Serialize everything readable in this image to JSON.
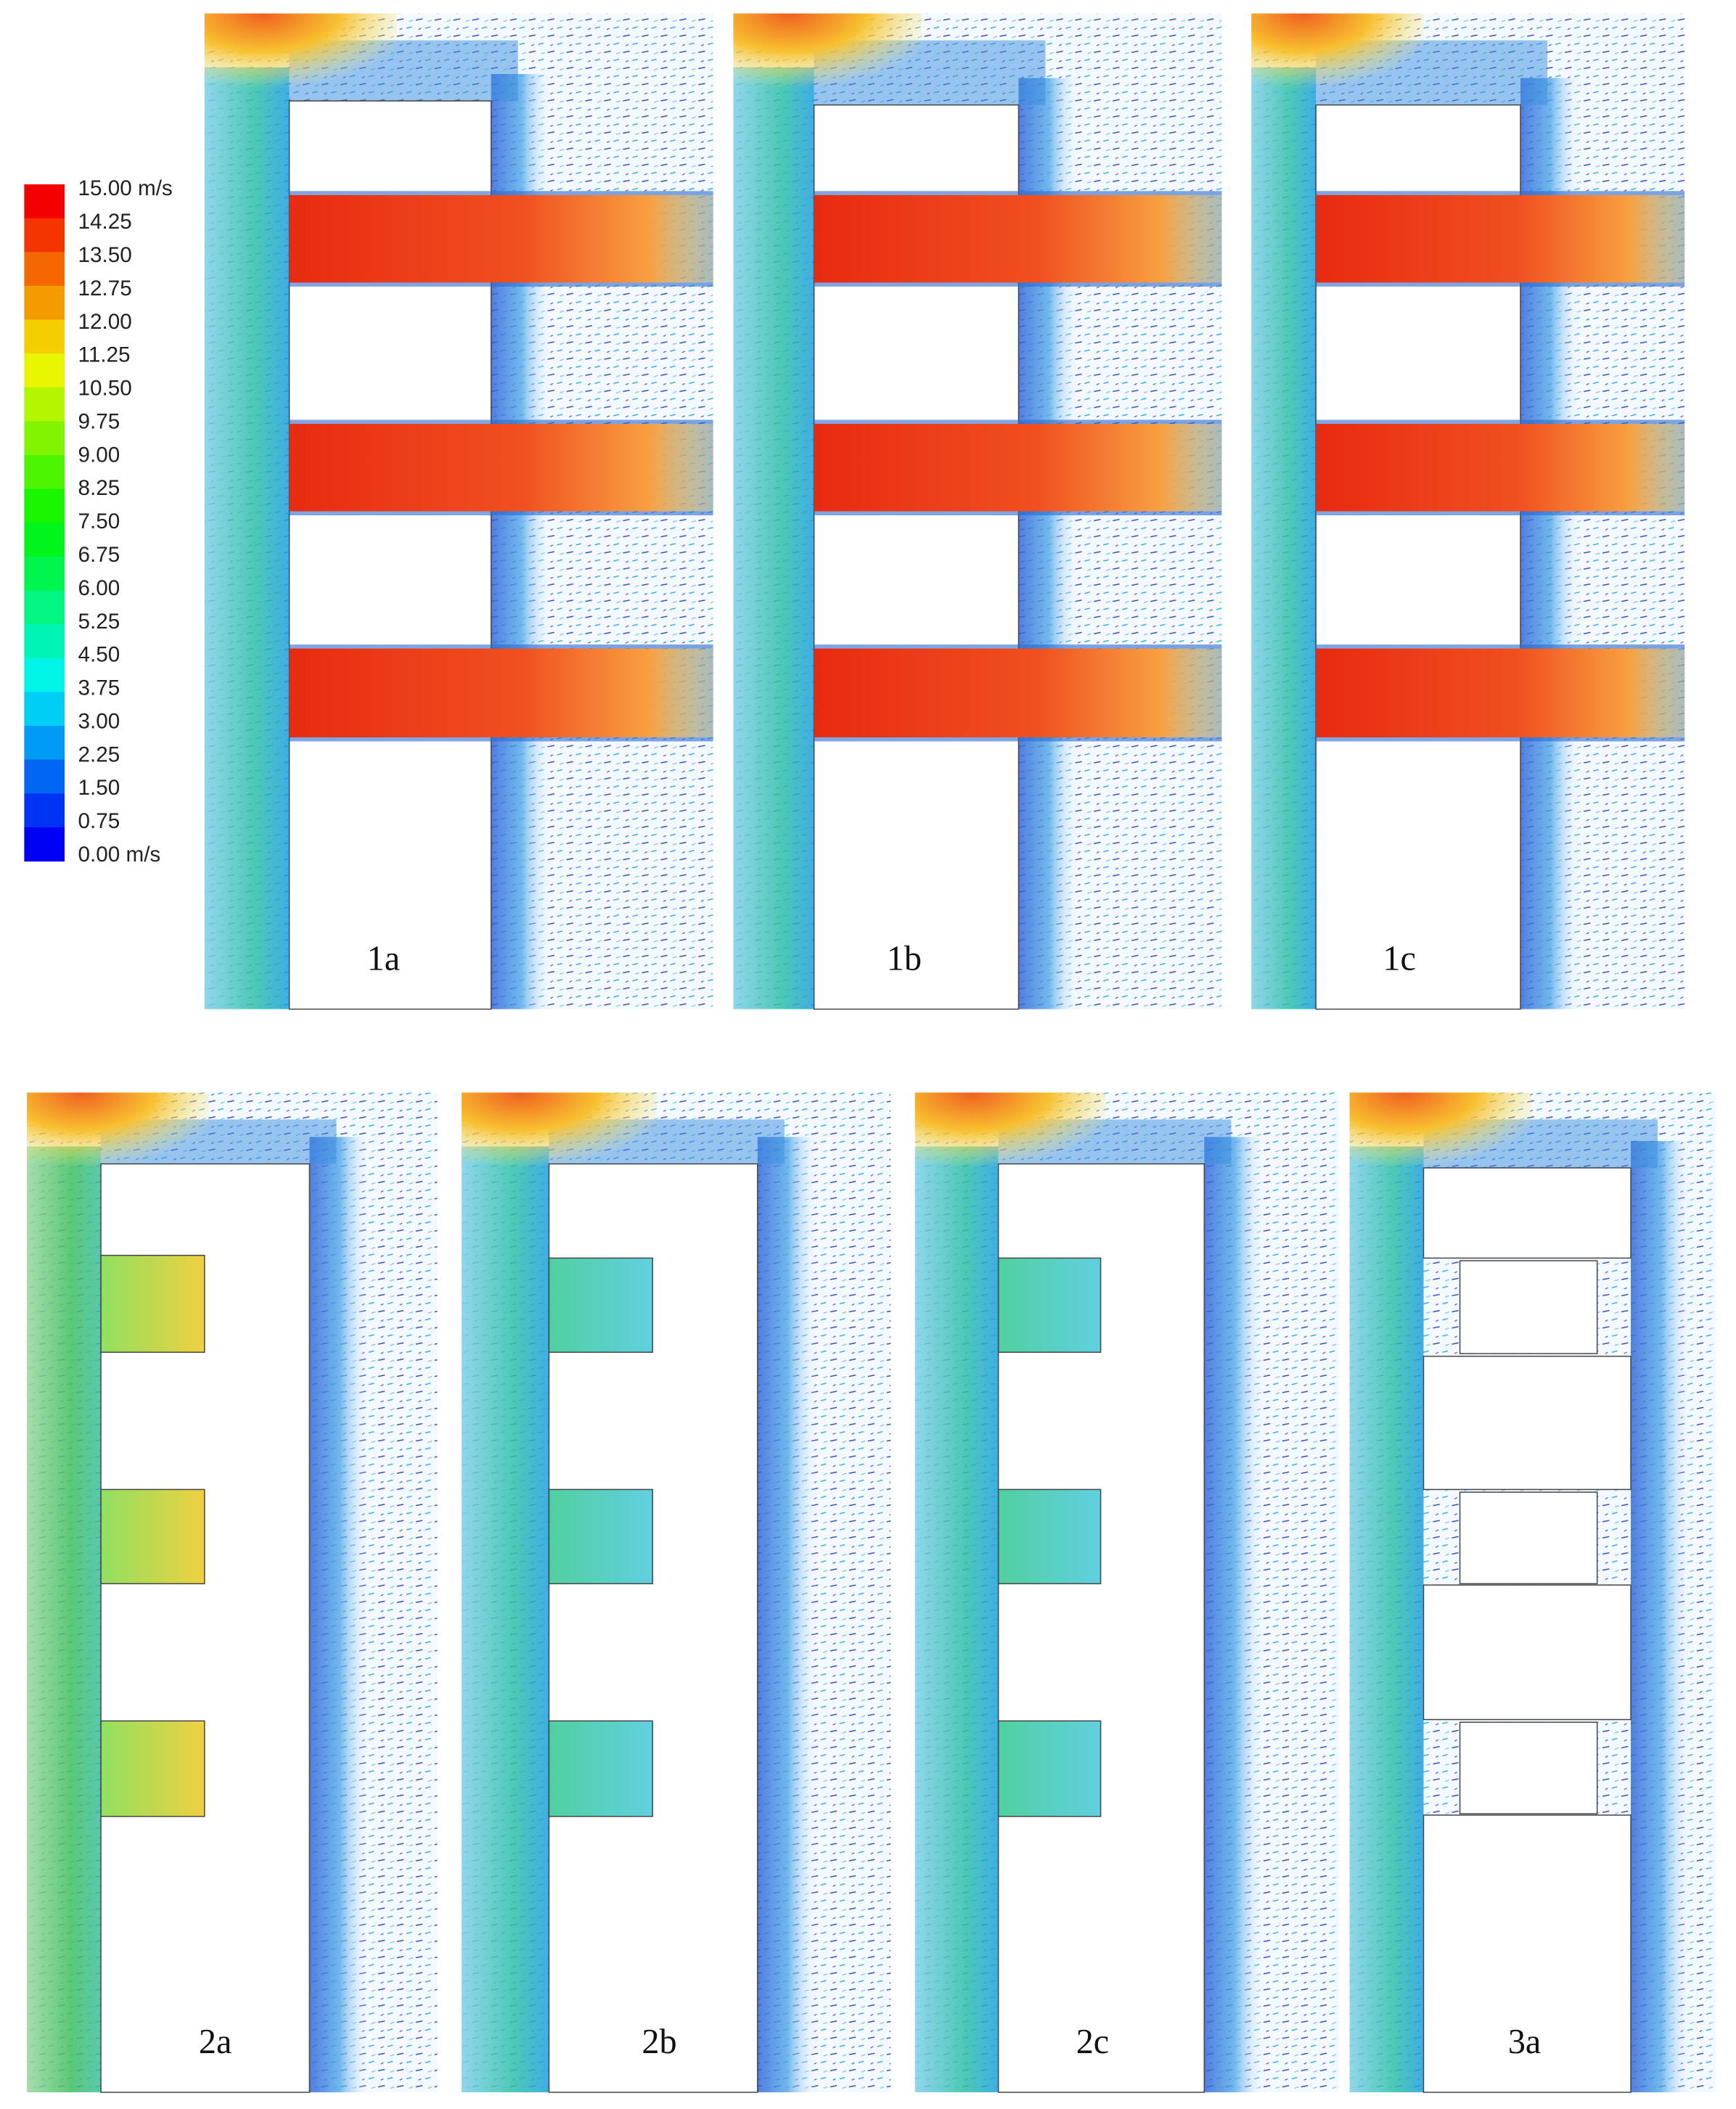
{
  "colorbar": {
    "labels": [
      "15.00 m/s",
      "14.25",
      "13.50",
      "12.75",
      "12.00",
      "11.25",
      "10.50",
      "9.75",
      "9.00",
      "8.25",
      "7.50",
      "6.75",
      "6.00",
      "5.25",
      "4.50",
      "3.75",
      "3.00",
      "2.25",
      "1.50",
      "0.75",
      "0.00 m/s"
    ]
  },
  "panels": [
    {
      "label": "1a"
    },
    {
      "label": "1b"
    },
    {
      "label": "1c"
    },
    {
      "label": "2a"
    },
    {
      "label": "2b"
    },
    {
      "label": "2c"
    },
    {
      "label": "3a"
    }
  ]
}
